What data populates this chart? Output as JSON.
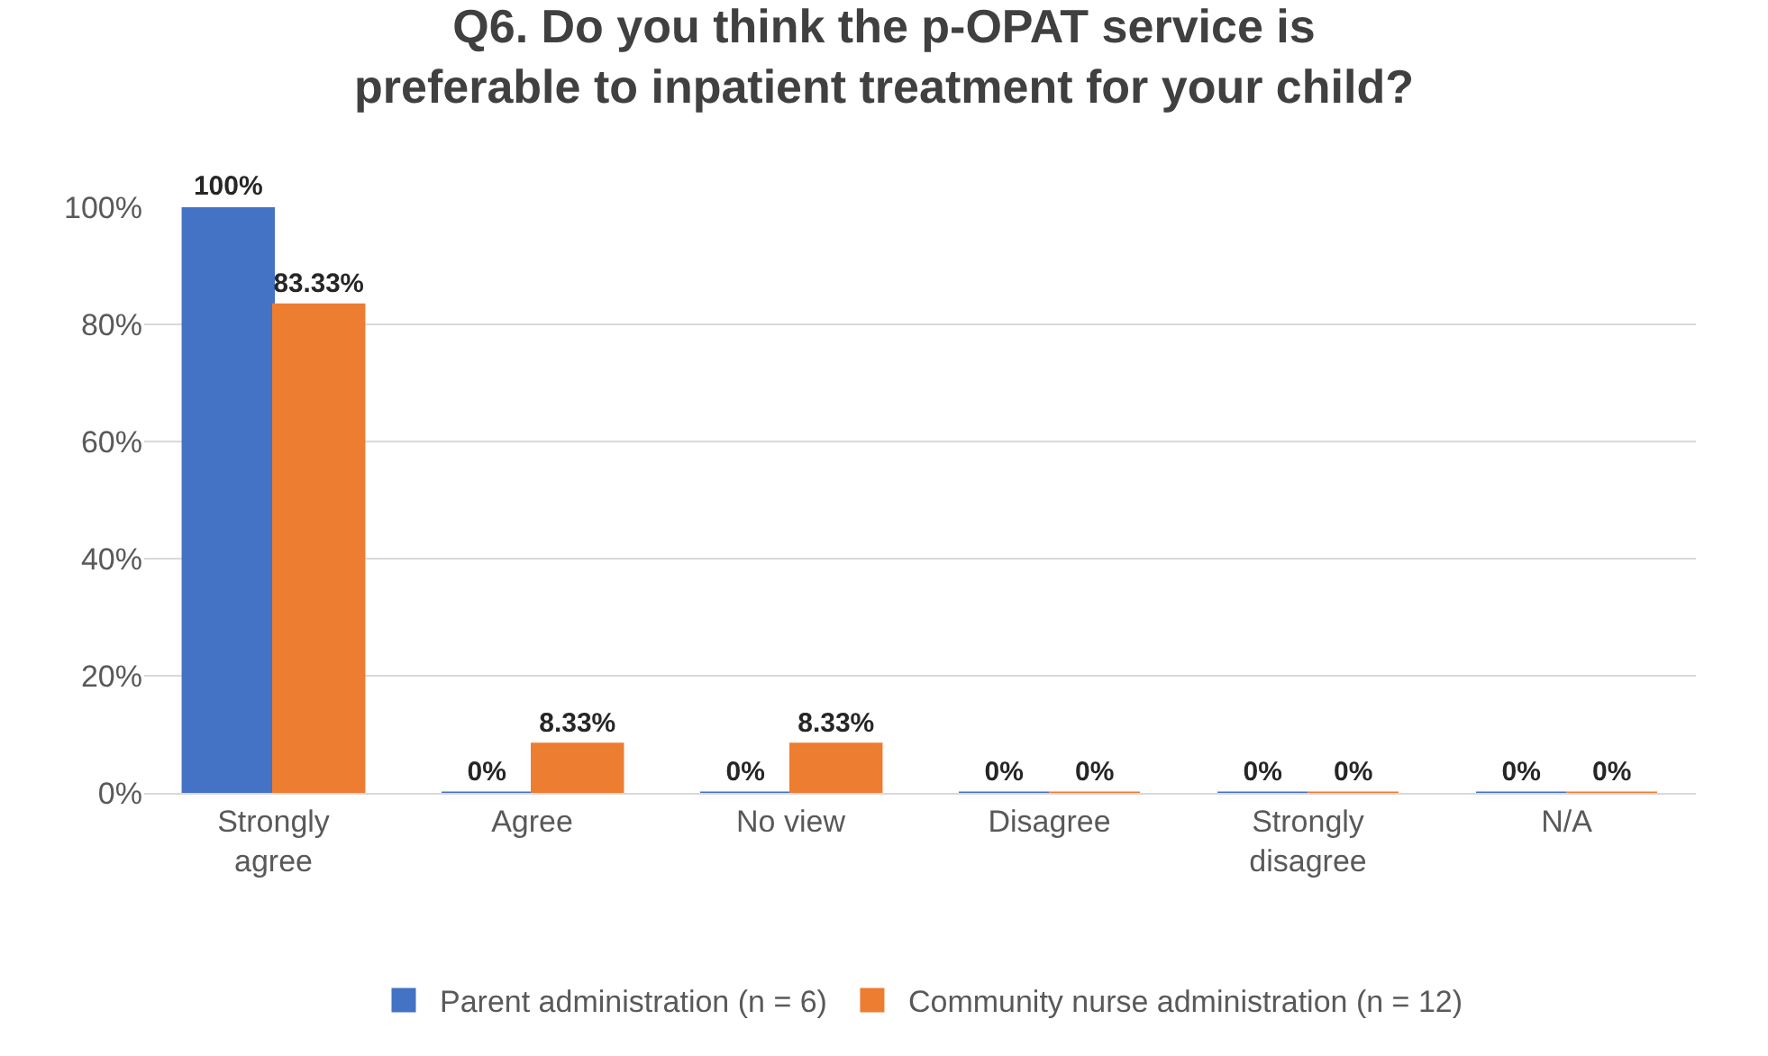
{
  "chart_data": {
    "type": "bar",
    "title": "Q6. Do you think the p-OPAT service is\npreferable to inpatient treatment for your child?",
    "categories": [
      "Strongly agree",
      "Agree",
      "No view",
      "Disagree",
      "Strongly disagree",
      "N/A"
    ],
    "series": [
      {
        "name": "Parent administration (n = 6)",
        "color": "#4472c4",
        "values": [
          100,
          0,
          0,
          0,
          0,
          0
        ],
        "value_labels": [
          "100%",
          "0%",
          "0%",
          "0%",
          "0%",
          "0%"
        ]
      },
      {
        "name": "Community nurse administration (n = 12)",
        "color": "#ed7d31",
        "values": [
          83.33,
          8.33,
          8.33,
          0,
          0,
          0
        ],
        "value_labels": [
          "83.33%",
          "8.33%",
          "8.33%",
          "0%",
          "0%",
          "0%"
        ]
      }
    ],
    "ylim": [
      0,
      100
    ],
    "yticks": [
      {
        "value": 0,
        "label": "0%"
      },
      {
        "value": 20,
        "label": "20%"
      },
      {
        "value": 40,
        "label": "40%"
      },
      {
        "value": 60,
        "label": "60%"
      },
      {
        "value": 80,
        "label": "80%"
      },
      {
        "value": 100,
        "label": "100%"
      }
    ],
    "grid": "y",
    "legend": "bottom"
  }
}
